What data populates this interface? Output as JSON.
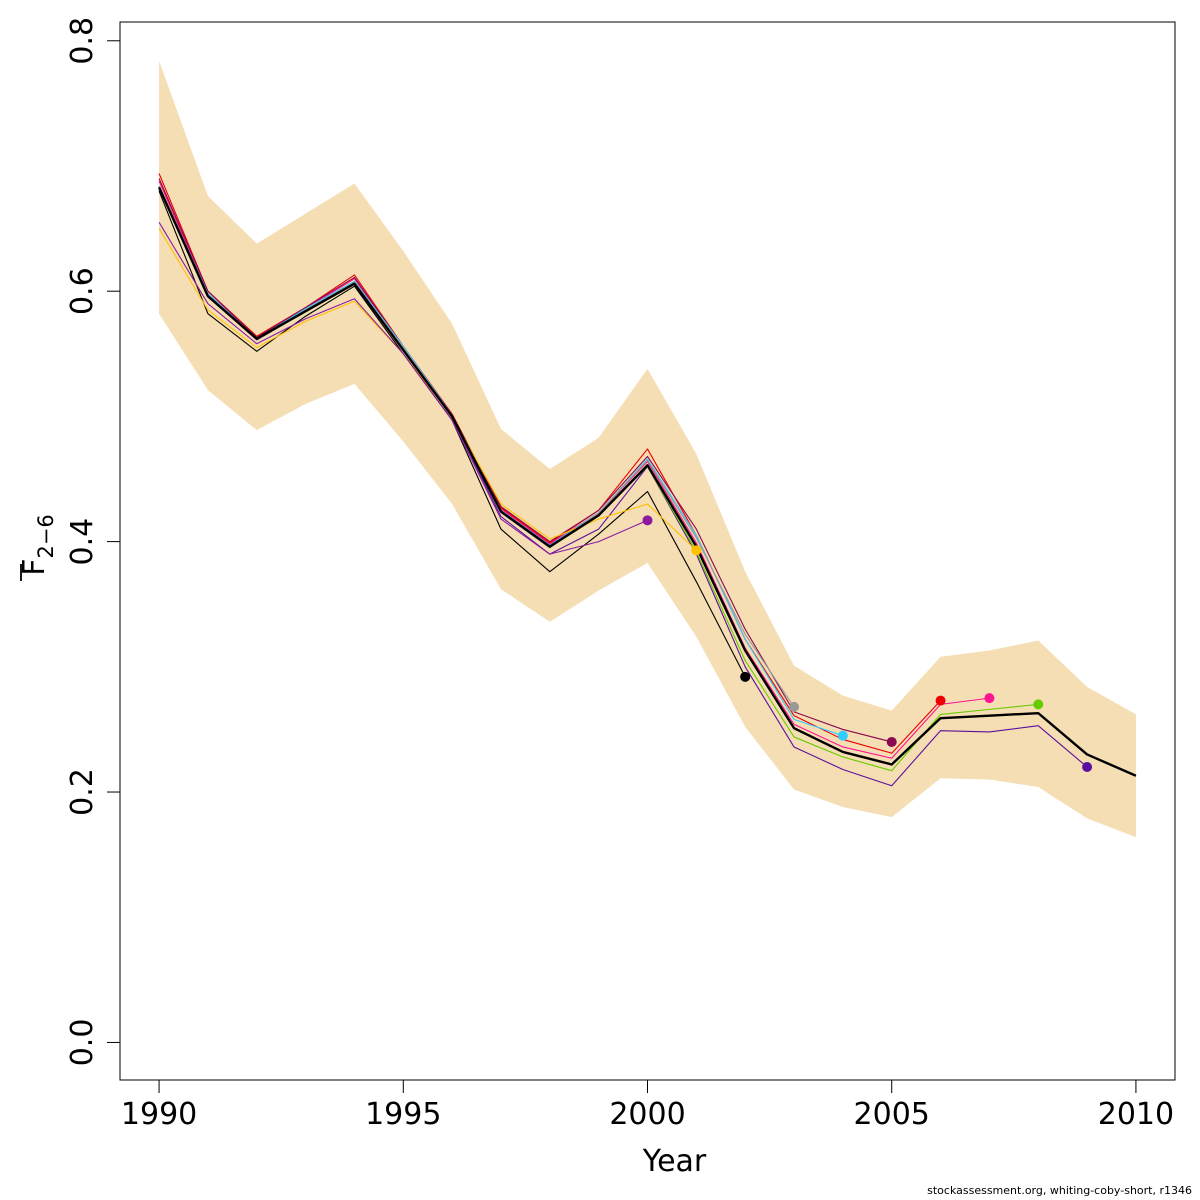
{
  "chart_data": {
    "type": "line",
    "xlabel": "Year",
    "ylabel_main": "F",
    "ylabel_sub": "2−6",
    "xlim": [
      1989.2,
      2010.8
    ],
    "ylim": [
      -0.03,
      0.815
    ],
    "xticks": [
      "1990",
      "1995",
      "2000",
      "2005",
      "2010"
    ],
    "yticks": [
      "0.0",
      "0.2",
      "0.4",
      "0.6",
      "0.8"
    ],
    "band_color": "#f5deb3",
    "confidence_band": {
      "x": [
        1990,
        1991,
        1992,
        1993,
        1994,
        1995,
        1996,
        1997,
        1998,
        1999,
        2000,
        2001,
        2002,
        2003,
        2004,
        2005,
        2006,
        2007,
        2008,
        2009,
        2010
      ],
      "lower": [
        0.582,
        0.521,
        0.489,
        0.51,
        0.526,
        0.48,
        0.43,
        0.362,
        0.336,
        0.361,
        0.383,
        0.324,
        0.252,
        0.202,
        0.188,
        0.18,
        0.211,
        0.21,
        0.204,
        0.179,
        0.164
      ],
      "upper": [
        0.784,
        0.676,
        0.638,
        0.662,
        0.686,
        0.632,
        0.574,
        0.49,
        0.458,
        0.483,
        0.538,
        0.47,
        0.376,
        0.301,
        0.277,
        0.265,
        0.308,
        0.313,
        0.321,
        0.284,
        0.262
      ]
    },
    "series": [
      {
        "color": "#000000",
        "width": 2.4,
        "x": [
          1990,
          1991,
          1992,
          1993,
          1994,
          1995,
          1996,
          1997,
          1998,
          1999,
          2000,
          2001,
          2002,
          2003,
          2004,
          2005,
          2006,
          2007,
          2008,
          2009,
          2010
        ],
        "y": [
          0.683,
          0.596,
          0.562,
          0.584,
          0.606,
          0.553,
          0.5,
          0.424,
          0.396,
          0.421,
          0.461,
          0.396,
          0.313,
          0.251,
          0.232,
          0.222,
          0.259,
          0.261,
          0.263,
          0.23,
          0.213
        ]
      },
      {
        "color": "#5b0f9f",
        "width": 1.1,
        "endpoint": true,
        "x": [
          1990,
          1991,
          1992,
          1993,
          1994,
          1995,
          1996,
          1997,
          1998,
          1999,
          2000,
          2001,
          2002,
          2003,
          2004,
          2005,
          2006,
          2007,
          2008,
          2009
        ],
        "y": [
          0.683,
          0.596,
          0.561,
          0.584,
          0.607,
          0.553,
          0.499,
          0.42,
          0.39,
          0.41,
          0.46,
          0.39,
          0.3,
          0.236,
          0.218,
          0.205,
          0.249,
          0.248,
          0.253,
          0.22
        ]
      },
      {
        "color": "#66cc00",
        "width": 1.1,
        "endpoint": true,
        "x": [
          1990,
          1991,
          1992,
          1993,
          1994,
          1995,
          1996,
          1997,
          1998,
          1999,
          2000,
          2001,
          2002,
          2003,
          2004,
          2005,
          2006,
          2007,
          2008
        ],
        "y": [
          0.684,
          0.597,
          0.562,
          0.585,
          0.607,
          0.554,
          0.5,
          0.424,
          0.397,
          0.421,
          0.46,
          0.392,
          0.305,
          0.244,
          0.228,
          0.217,
          0.262,
          0.266,
          0.27
        ]
      },
      {
        "color": "#ff1493",
        "width": 1.1,
        "endpoint": true,
        "x": [
          1990,
          1991,
          1992,
          1993,
          1994,
          1995,
          1996,
          1997,
          1998,
          1999,
          2000,
          2001,
          2002,
          2003,
          2004,
          2005,
          2006,
          2007
        ],
        "y": [
          0.688,
          0.598,
          0.563,
          0.586,
          0.61,
          0.555,
          0.501,
          0.426,
          0.398,
          0.423,
          0.464,
          0.399,
          0.315,
          0.254,
          0.236,
          0.227,
          0.27,
          0.275
        ]
      },
      {
        "color": "#ee0000",
        "width": 1.1,
        "endpoint": true,
        "x": [
          1990,
          1991,
          1992,
          1993,
          1994,
          1995,
          1996,
          1997,
          1998,
          1999,
          2000,
          2001,
          2002,
          2003,
          2004,
          2005,
          2006
        ],
        "y": [
          0.694,
          0.6,
          0.564,
          0.587,
          0.613,
          0.556,
          0.502,
          0.427,
          0.399,
          0.425,
          0.474,
          0.405,
          0.322,
          0.261,
          0.242,
          0.231,
          0.273
        ]
      },
      {
        "color": "#8b0a50",
        "width": 1.1,
        "endpoint": true,
        "x": [
          1990,
          1991,
          1992,
          1993,
          1994,
          1995,
          1996,
          1997,
          1998,
          1999,
          2000,
          2001,
          2002,
          2003,
          2004,
          2005
        ],
        "y": [
          0.69,
          0.6,
          0.563,
          0.587,
          0.611,
          0.556,
          0.501,
          0.428,
          0.4,
          0.425,
          0.468,
          0.41,
          0.33,
          0.264,
          0.25,
          0.24
        ]
      },
      {
        "color": "#33ccff",
        "width": 1.1,
        "endpoint": true,
        "x": [
          1990,
          1991,
          1992,
          1993,
          1994,
          1995,
          1996,
          1997,
          1998,
          1999,
          2000,
          2001,
          2002,
          2003,
          2004
        ],
        "y": [
          0.684,
          0.598,
          0.562,
          0.586,
          0.608,
          0.556,
          0.501,
          0.425,
          0.397,
          0.423,
          0.466,
          0.405,
          0.322,
          0.258,
          0.245
        ]
      },
      {
        "color": "#999999",
        "width": 1.1,
        "endpoint": true,
        "x": [
          1990,
          1991,
          1992,
          1993,
          1994,
          1995,
          1996,
          1997,
          1998,
          1999,
          2000,
          2001,
          2002,
          2003
        ],
        "y": [
          0.681,
          0.597,
          0.561,
          0.585,
          0.607,
          0.555,
          0.5,
          0.423,
          0.395,
          0.423,
          0.465,
          0.403,
          0.326,
          0.268
        ]
      },
      {
        "color": "#000000",
        "width": 1.1,
        "endpoint": true,
        "x": [
          1990,
          1991,
          1992,
          1993,
          1994,
          1995,
          1996,
          1997,
          1998,
          1999,
          2000,
          2001,
          2002
        ],
        "y": [
          0.68,
          0.582,
          0.552,
          0.58,
          0.604,
          0.55,
          0.497,
          0.41,
          0.376,
          0.406,
          0.44,
          0.368,
          0.292
        ]
      },
      {
        "color": "#ffc000",
        "width": 1.1,
        "endpoint": true,
        "x": [
          1990,
          1991,
          1992,
          1993,
          1994,
          1995,
          1996,
          1997,
          1998,
          1999,
          2000,
          2001
        ],
        "y": [
          0.65,
          0.585,
          0.555,
          0.576,
          0.592,
          0.55,
          0.5,
          0.43,
          0.402,
          0.418,
          0.43,
          0.393
        ]
      },
      {
        "color": "#8b1aa0",
        "width": 1.1,
        "endpoint": true,
        "x": [
          1990,
          1991,
          1992,
          1993,
          1994,
          1995,
          1996,
          1997,
          1998,
          1999,
          2000
        ],
        "y": [
          0.655,
          0.59,
          0.558,
          0.578,
          0.594,
          0.55,
          0.497,
          0.418,
          0.39,
          0.4,
          0.417
        ]
      }
    ]
  },
  "footer": "stockassessment.org, whiting-coby-short, r1346"
}
